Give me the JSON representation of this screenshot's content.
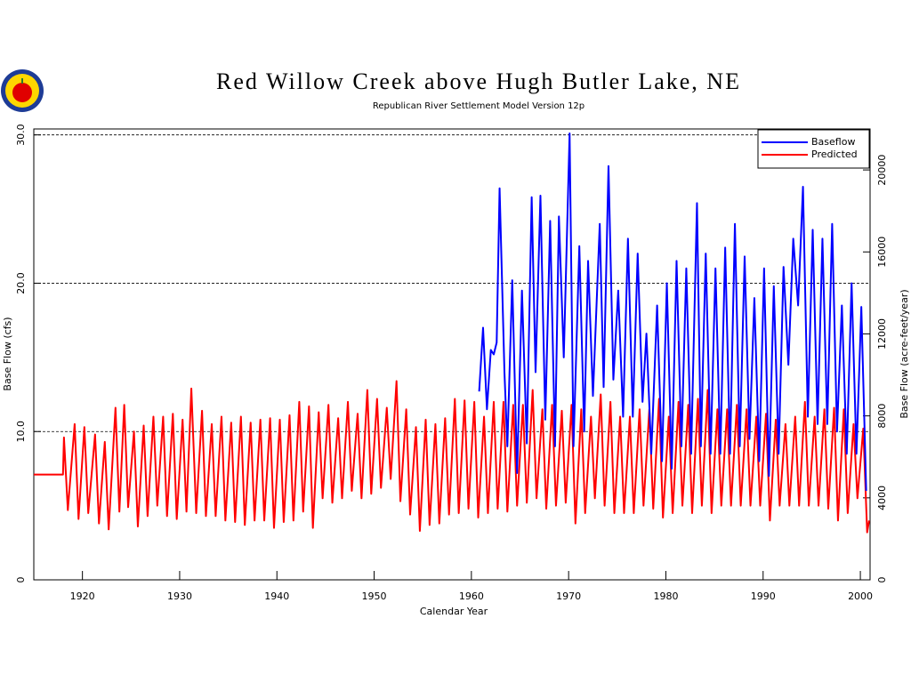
{
  "chart_data": {
    "type": "line",
    "title": "Red Willow Creek above Hugh Butler Lake, NE",
    "subtitle": "Republican River Settlement Model Version 12p",
    "x_label": "Calendar Year",
    "y_label": "Base Flow (cfs)",
    "y2_label": "Base Flow (acre-feet/year)",
    "xlim": [
      1915,
      2001
    ],
    "xticks": [
      1920,
      1930,
      1940,
      1950,
      1960,
      1970,
      1980,
      1990,
      2000
    ],
    "ylim": [
      0,
      30.4
    ],
    "yticks": [
      0,
      {
        "value": 10,
        "label": "10.0"
      },
      {
        "value": 20,
        "label": "20.0"
      },
      {
        "value": 30,
        "label": "30.0"
      }
    ],
    "y2lim": [
      0,
      22000
    ],
    "y2ticks": [
      0,
      4000,
      8000,
      12000,
      16000,
      20000
    ],
    "grid": true,
    "legend": "top-right",
    "series": [
      {
        "name": "Baseflow",
        "color": "#0000ff",
        "x": [
          1960.8,
          1961.2,
          1961.6,
          1962.0,
          1962.3,
          1962.6,
          1962.9,
          1963.4,
          1963.7,
          1964.2,
          1964.7,
          1965.2,
          1965.7,
          1966.2,
          1966.6,
          1967.1,
          1967.6,
          1968.1,
          1968.6,
          1969.0,
          1969.5,
          1970.1,
          1970.5,
          1971.1,
          1971.6,
          1972.0,
          1972.5,
          1973.2,
          1973.6,
          1974.1,
          1974.6,
          1975.1,
          1975.6,
          1976.1,
          1976.6,
          1977.1,
          1977.6,
          1978.0,
          1978.5,
          1979.1,
          1979.6,
          1980.1,
          1980.6,
          1981.1,
          1981.6,
          1982.1,
          1982.6,
          1983.2,
          1983.6,
          1984.1,
          1984.6,
          1985.1,
          1985.6,
          1986.1,
          1986.6,
          1987.1,
          1987.6,
          1988.1,
          1988.6,
          1989.1,
          1989.6,
          1990.1,
          1990.6,
          1991.1,
          1991.6,
          1992.1,
          1992.6,
          1993.1,
          1993.6,
          1994.1,
          1994.6,
          1995.1,
          1995.6,
          1996.1,
          1996.6,
          1997.1,
          1997.6,
          1998.1,
          1998.6,
          1999.1,
          1999.6,
          2000.1,
          2000.6
        ],
        "values": [
          12.7,
          17.0,
          11.5,
          15.5,
          15.2,
          16.0,
          26.4,
          14.0,
          9.0,
          20.2,
          7.2,
          19.5,
          9.2,
          25.8,
          14.0,
          25.9,
          10.8,
          24.2,
          9.0,
          24.5,
          15.0,
          30.1,
          9.0,
          22.5,
          10.0,
          21.5,
          12.4,
          24.0,
          13.0,
          27.9,
          13.5,
          19.5,
          11.0,
          23.0,
          11.0,
          22.0,
          12.0,
          16.6,
          8.5,
          18.5,
          8.0,
          20.0,
          7.5,
          21.5,
          9.0,
          21.0,
          8.5,
          25.4,
          9.0,
          22.0,
          8.5,
          21.0,
          8.5,
          22.4,
          8.5,
          24.0,
          9.0,
          21.8,
          9.5,
          19.0,
          8.0,
          21.0,
          7.0,
          19.8,
          8.5,
          21.1,
          14.5,
          23.0,
          18.5,
          26.5,
          11.0,
          23.6,
          10.5,
          23.0,
          10.5,
          24.0,
          10.0,
          18.5,
          8.5,
          20.0,
          8.5,
          18.4,
          6.0
        ]
      },
      {
        "name": "Predicted",
        "color": "#ff0000",
        "x": [
          1915.0,
          1918.0,
          1918.1,
          1918.5,
          1919.2,
          1919.6,
          1920.2,
          1920.6,
          1921.3,
          1921.7,
          1922.3,
          1922.7,
          1923.4,
          1923.8,
          1924.3,
          1924.7,
          1925.3,
          1925.7,
          1926.3,
          1926.7,
          1927.3,
          1927.7,
          1928.3,
          1928.7,
          1929.3,
          1929.7,
          1930.3,
          1930.7,
          1931.2,
          1931.7,
          1932.3,
          1932.7,
          1933.3,
          1933.7,
          1934.3,
          1934.7,
          1935.3,
          1935.7,
          1936.3,
          1936.7,
          1937.3,
          1937.7,
          1938.3,
          1938.7,
          1939.3,
          1939.7,
          1940.3,
          1940.7,
          1941.3,
          1941.7,
          1942.3,
          1942.7,
          1943.3,
          1943.7,
          1944.3,
          1944.7,
          1945.3,
          1945.7,
          1946.3,
          1946.7,
          1947.3,
          1947.7,
          1948.3,
          1948.7,
          1949.3,
          1949.7,
          1950.3,
          1950.7,
          1951.3,
          1951.7,
          1952.3,
          1952.7,
          1953.3,
          1953.7,
          1954.3,
          1954.7,
          1955.3,
          1955.7,
          1956.3,
          1956.7,
          1957.3,
          1957.7,
          1958.3,
          1958.7,
          1959.3,
          1959.7,
          1960.3,
          1960.7,
          1961.3,
          1961.7,
          1962.3,
          1962.7,
          1963.3,
          1963.7,
          1964.3,
          1964.7,
          1965.3,
          1965.7,
          1966.3,
          1966.7,
          1967.3,
          1967.7,
          1968.3,
          1968.7,
          1969.3,
          1969.7,
          1970.3,
          1970.7,
          1971.3,
          1971.7,
          1972.3,
          1972.7,
          1973.3,
          1973.7,
          1974.3,
          1974.7,
          1975.3,
          1975.7,
          1976.3,
          1976.7,
          1977.3,
          1977.7,
          1978.3,
          1978.7,
          1979.3,
          1979.7,
          1980.3,
          1980.7,
          1981.3,
          1981.7,
          1982.3,
          1982.7,
          1983.3,
          1983.7,
          1984.3,
          1984.7,
          1985.3,
          1985.7,
          1986.3,
          1986.7,
          1987.3,
          1987.7,
          1988.3,
          1988.7,
          1989.3,
          1989.7,
          1990.3,
          1990.7,
          1991.3,
          1991.7,
          1992.3,
          1992.7,
          1993.3,
          1993.7,
          1994.3,
          1994.7,
          1995.3,
          1995.7,
          1996.3,
          1996.7,
          1997.3,
          1997.7,
          1998.3,
          1998.7,
          1999.3,
          1999.7,
          2000.3,
          2000.7,
          2000.9
        ],
        "values": [
          7.1,
          7.1,
          9.6,
          4.7,
          10.5,
          4.1,
          10.3,
          4.5,
          9.8,
          3.8,
          9.3,
          3.4,
          11.6,
          4.6,
          11.8,
          4.9,
          10.0,
          3.6,
          10.4,
          4.3,
          11.0,
          5.0,
          11.0,
          4.3,
          11.2,
          4.1,
          10.8,
          4.6,
          12.9,
          4.5,
          11.4,
          4.3,
          10.5,
          4.3,
          11.0,
          4.0,
          10.6,
          3.9,
          11.0,
          3.7,
          10.6,
          4.0,
          10.8,
          4.0,
          10.9,
          3.5,
          10.8,
          3.9,
          11.1,
          4.0,
          12.0,
          4.6,
          11.7,
          3.5,
          11.3,
          5.5,
          11.8,
          5.2,
          10.9,
          5.5,
          12.0,
          6.0,
          11.2,
          5.5,
          12.8,
          5.8,
          12.2,
          6.2,
          11.6,
          6.8,
          13.4,
          5.3,
          11.5,
          4.4,
          10.3,
          3.3,
          10.8,
          3.7,
          10.5,
          3.8,
          10.9,
          4.4,
          12.2,
          4.5,
          12.1,
          4.8,
          12.0,
          4.2,
          11.0,
          4.5,
          12.0,
          4.8,
          12.0,
          4.6,
          11.8,
          5.0,
          11.8,
          5.2,
          12.8,
          5.5,
          11.5,
          4.8,
          11.8,
          5.0,
          11.4,
          5.2,
          11.8,
          3.8,
          11.5,
          4.5,
          11.0,
          5.5,
          12.5,
          5.0,
          12.0,
          4.5,
          11.0,
          4.5,
          11.0,
          4.5,
          11.5,
          5.0,
          11.5,
          4.8,
          12.2,
          4.2,
          11.0,
          4.5,
          12.0,
          5.0,
          11.8,
          4.5,
          12.2,
          5.0,
          12.8,
          4.5,
          11.5,
          5.0,
          11.5,
          5.0,
          11.8,
          5.0,
          11.5,
          5.0,
          11.0,
          5.0,
          11.2,
          4.0,
          10.8,
          5.0,
          10.5,
          5.0,
          11.0,
          5.0,
          12.0,
          5.0,
          11.0,
          5.0,
          11.5,
          4.8,
          11.6,
          4.0,
          11.5,
          4.5,
          10.5,
          5.5,
          10.2,
          3.2,
          4.0
        ]
      }
    ]
  }
}
